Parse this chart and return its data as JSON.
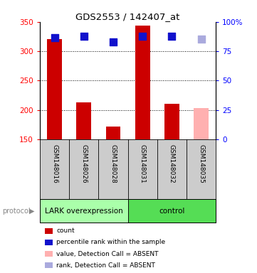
{
  "title": "GDS2553 / 142407_at",
  "samples": [
    "GSM148016",
    "GSM148026",
    "GSM148028",
    "GSM148031",
    "GSM148032",
    "GSM148035"
  ],
  "bar_values": [
    320,
    213,
    172,
    344,
    210,
    203
  ],
  "bar_colors": [
    "#cc0000",
    "#cc0000",
    "#cc0000",
    "#cc0000",
    "#cc0000",
    "#ffb0b0"
  ],
  "rank_values": [
    323,
    326,
    316,
    325,
    326,
    321
  ],
  "rank_colors": [
    "#1111cc",
    "#1111cc",
    "#1111cc",
    "#1111cc",
    "#1111cc",
    "#aaaadd"
  ],
  "ylim_left": [
    150,
    350
  ],
  "ylim_right": [
    0,
    100
  ],
  "yticks_left": [
    150,
    200,
    250,
    300,
    350
  ],
  "yticks_right": [
    0,
    25,
    50,
    75,
    100
  ],
  "right_tick_labels": [
    "0",
    "25",
    "50",
    "75",
    "100%"
  ],
  "groups": [
    {
      "label": "LARK overexpression",
      "start": 0,
      "end": 3,
      "color": "#aaffaa"
    },
    {
      "label": "control",
      "start": 3,
      "end": 6,
      "color": "#55dd55"
    }
  ],
  "legend_items": [
    {
      "color": "#cc0000",
      "label": "count"
    },
    {
      "color": "#1111cc",
      "label": "percentile rank within the sample"
    },
    {
      "color": "#ffb0b0",
      "label": "value, Detection Call = ABSENT"
    },
    {
      "color": "#aaaadd",
      "label": "rank, Detection Call = ABSENT"
    }
  ],
  "bar_width": 0.5,
  "rank_size": 60,
  "background_color": "#ffffff",
  "label_area_color": "#cccccc",
  "grid_dotted_values": [
    200,
    250,
    300
  ]
}
